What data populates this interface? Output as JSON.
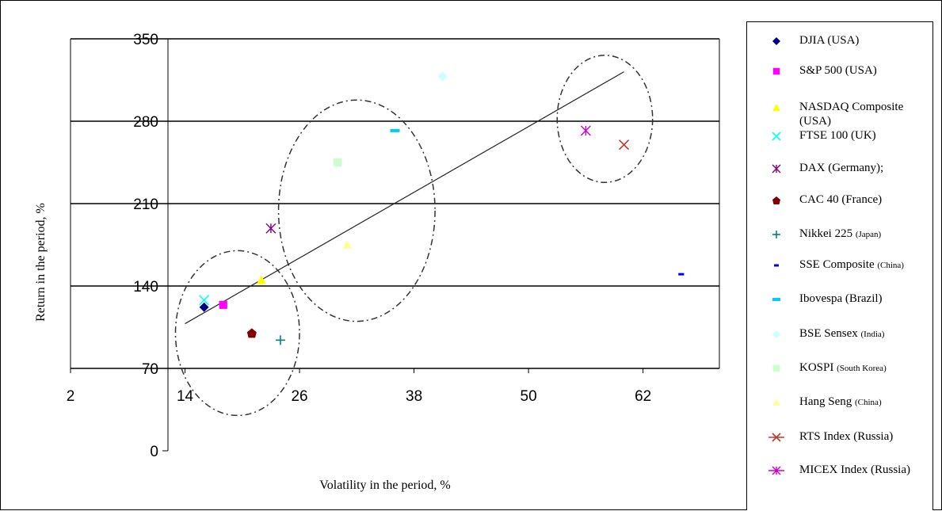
{
  "chart_data": {
    "type": "scatter",
    "xlabel": "Volatility in the period, %",
    "ylabel": "Return in the period, %",
    "x_ticks": [
      "2",
      "14",
      "26",
      "38",
      "50",
      "62"
    ],
    "y_ticks": [
      "0",
      "70",
      "140",
      "210",
      "280",
      "350"
    ],
    "xlim": [
      2,
      70
    ],
    "ylim": [
      0,
      350
    ],
    "grid": "horizontal",
    "legend_position": "right",
    "series": [
      {
        "name": "DJIA (USA)",
        "x": 16,
        "y": 122,
        "marker": "diamond",
        "color": "#000080"
      },
      {
        "name": "S&P 500 (USA)",
        "x": 18,
        "y": 124,
        "marker": "square",
        "color": "#ff00ff"
      },
      {
        "name": "NASDAQ Composite (USA)",
        "x": 22,
        "y": 145,
        "marker": "triangle",
        "color": "#ffff00"
      },
      {
        "name": "FTSE 100 (UK)",
        "x": 16,
        "y": 128,
        "marker": "x",
        "color": "#00ffff"
      },
      {
        "name": "DAX (Germany);",
        "x": 23,
        "y": 189,
        "marker": "star",
        "color": "#800080"
      },
      {
        "name": "CAC 40 (France)",
        "x": 21,
        "y": 100,
        "marker": "circle",
        "color": "#800000"
      },
      {
        "name": "Nikkei 225 (Japan)",
        "x": 24,
        "y": 94,
        "marker": "plus",
        "color": "#008080"
      },
      {
        "name": "SSE Composite (China)",
        "x": 66,
        "y": 150,
        "marker": "dash",
        "color": "#0000ff"
      },
      {
        "name": "Ibovespa (Brazil)",
        "x": 36,
        "y": 272,
        "marker": "bar",
        "color": "#00ccff"
      },
      {
        "name": "BSE Sensex (India)",
        "x": 41,
        "y": 318,
        "marker": "diamond",
        "color": "#ccffff"
      },
      {
        "name": "KOSPI (South Korea)",
        "x": 30,
        "y": 245,
        "marker": "square",
        "color": "#ccffcc"
      },
      {
        "name": "Hang Seng (China)",
        "x": 31,
        "y": 175,
        "marker": "triangle",
        "color": "#ffff99"
      },
      {
        "name": "RTS Index (Russia)",
        "x": 60,
        "y": 260,
        "marker": "x",
        "color": "#c0392b"
      },
      {
        "name": "MICEX Index (Russia)",
        "x": 56,
        "y": 272,
        "marker": "star",
        "color": "#cc00cc"
      }
    ],
    "trendline": {
      "x": [
        14,
        60
      ],
      "y": [
        108,
        322
      ]
    },
    "clusters": [
      {
        "cx": 19.5,
        "cy": 100,
        "rx": 6.5,
        "ry": 70
      },
      {
        "cx": 32,
        "cy": 204,
        "rx": 8.2,
        "ry": 94
      },
      {
        "cx": 58,
        "cy": 282,
        "rx": 5,
        "ry": 54
      }
    ]
  },
  "legend": {
    "items": [
      {
        "label": "DJIA (USA)",
        "marker": "diamond",
        "color": "#000080"
      },
      {
        "label": "S&P 500 (USA)",
        "marker": "square",
        "color": "#ff00ff"
      },
      {
        "label": "NASDAQ Composite (USA)",
        "marker": "triangle",
        "color": "#ffff00"
      },
      {
        "label": "FTSE 100 (UK)",
        "marker": "x",
        "color": "#00ffff"
      },
      {
        "label": "DAX (Germany);",
        "marker": "star",
        "color": "#800080"
      },
      {
        "label": "CAC 40 (France)",
        "marker": "circle",
        "color": "#800000"
      },
      {
        "label": "Nikkei 225",
        "small": "(Japan)",
        "marker": "plus",
        "color": "#008080"
      },
      {
        "label": "SSE Composite",
        "small": "(China)",
        "marker": "dash",
        "color": "#0000ff"
      },
      {
        "label": "Ibovespa (Brazil)",
        "marker": "bar",
        "color": "#00ccff"
      },
      {
        "label": "BSE Sensex",
        "small": "(India)",
        "marker": "diamond",
        "color": "#ccffff"
      },
      {
        "label": "KOSPI",
        "small": "(South Korea)",
        "marker": "square",
        "color": "#ccffcc"
      },
      {
        "label": "Hang Seng",
        "small": "(China)",
        "marker": "triangle",
        "color": "#ffff99"
      },
      {
        "label": "RTS Index (Russia)",
        "marker": "x-line",
        "color": "#c0392b"
      },
      {
        "label": "MICEX Index (Russia)",
        "marker": "star-line",
        "color": "#cc00cc"
      }
    ]
  }
}
